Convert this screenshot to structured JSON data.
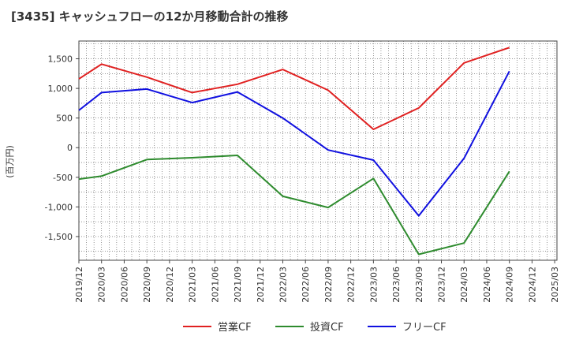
{
  "chart_data": {
    "type": "line",
    "title": "[3435]  キャッシュフローの12か月移動合計の推移",
    "ylabel": "(百万円)",
    "xlabel": "",
    "ylim": [
      -1900,
      1800
    ],
    "yticks": [
      1500,
      1000,
      500,
      0,
      -500,
      -1000,
      -1500
    ],
    "ytick_labels": [
      "1,500",
      "1,000",
      "500",
      "0",
      "-500",
      "-1,000",
      "-1,500"
    ],
    "categories": [
      "2019/12",
      "2020/03",
      "2020/06",
      "2020/09",
      "2020/12",
      "2021/03",
      "2021/06",
      "2021/09",
      "2021/12",
      "2022/03",
      "2022/06",
      "2022/09",
      "2022/12",
      "2023/03",
      "2023/06",
      "2023/09",
      "2023/12",
      "2024/03",
      "2024/06",
      "2024/09",
      "2024/12",
      "2025/03"
    ],
    "series": [
      {
        "name": "営業CF",
        "color": "#e02020",
        "points": [
          [
            "2019/12",
            1160
          ],
          [
            "2020/03",
            1410
          ],
          [
            "2020/09",
            1190
          ],
          [
            "2021/03",
            930
          ],
          [
            "2021/09",
            1070
          ],
          [
            "2022/03",
            1320
          ],
          [
            "2022/09",
            970
          ],
          [
            "2023/03",
            310
          ],
          [
            "2023/09",
            670
          ],
          [
            "2024/03",
            1430
          ],
          [
            "2024/09",
            1690
          ]
        ]
      },
      {
        "name": "投資CF",
        "color": "#2e8b2e",
        "points": [
          [
            "2019/12",
            -530
          ],
          [
            "2020/03",
            -480
          ],
          [
            "2020/09",
            -200
          ],
          [
            "2021/03",
            -170
          ],
          [
            "2021/09",
            -130
          ],
          [
            "2022/03",
            -820
          ],
          [
            "2022/09",
            -1010
          ],
          [
            "2023/03",
            -520
          ],
          [
            "2023/09",
            -1800
          ],
          [
            "2024/03",
            -1610
          ],
          [
            "2024/09",
            -400
          ]
        ]
      },
      {
        "name": "フリーCF",
        "color": "#1010e0",
        "points": [
          [
            "2019/12",
            630
          ],
          [
            "2020/03",
            930
          ],
          [
            "2020/09",
            990
          ],
          [
            "2021/03",
            760
          ],
          [
            "2021/09",
            940
          ],
          [
            "2022/03",
            500
          ],
          [
            "2022/09",
            -40
          ],
          [
            "2023/03",
            -210
          ],
          [
            "2023/09",
            -1150
          ],
          [
            "2024/03",
            -180
          ],
          [
            "2024/09",
            1290
          ]
        ]
      }
    ],
    "legend": "bottom-center",
    "grid": true
  }
}
